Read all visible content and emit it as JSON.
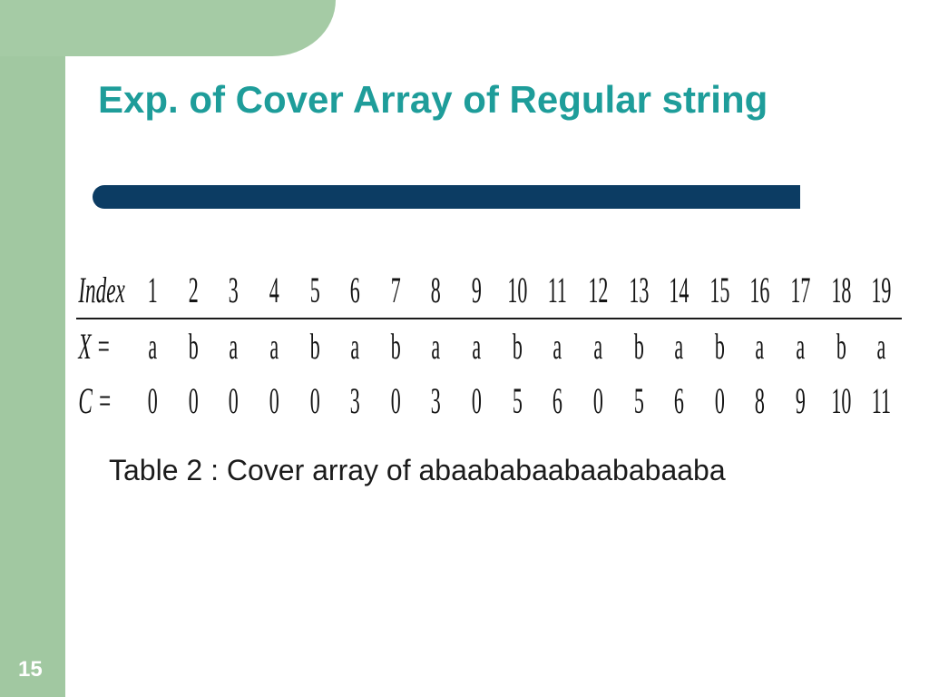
{
  "theme": {
    "sidebar_color": "#a5cba5",
    "title_color": "#1e9d9a",
    "rule_color": "#0c3c63",
    "text_color": "#1b1b1b",
    "background_color": "#ffffff",
    "page_number_color": "#ffffff"
  },
  "title": "Exp. of Cover Array of Regular string",
  "page_number": "15",
  "caption": "Table 2 : Cover array of abaababaabaababaaba",
  "table": {
    "type": "table",
    "font_family": "Times New Roman (condensed)",
    "header_fontsize_pt": 30,
    "body_fontsize_pt": 30,
    "row_labels": [
      "Index",
      "X =",
      "C ="
    ],
    "columns": [
      "1",
      "2",
      "3",
      "4",
      "5",
      "6",
      "7",
      "8",
      "9",
      "10",
      "11",
      "12",
      "13",
      "14",
      "15",
      "16",
      "17",
      "18",
      "19"
    ],
    "rows": {
      "X": [
        "a",
        "b",
        "a",
        "a",
        "b",
        "a",
        "b",
        "a",
        "a",
        "b",
        "a",
        "a",
        "b",
        "a",
        "b",
        "a",
        "a",
        "b",
        "a"
      ],
      "C": [
        "0",
        "0",
        "0",
        "0",
        "0",
        "3",
        "0",
        "3",
        "0",
        "5",
        "6",
        "0",
        "5",
        "6",
        "0",
        "8",
        "9",
        "10",
        "11"
      ]
    },
    "header_underline": true,
    "underline_color": "#1b1b1b"
  }
}
